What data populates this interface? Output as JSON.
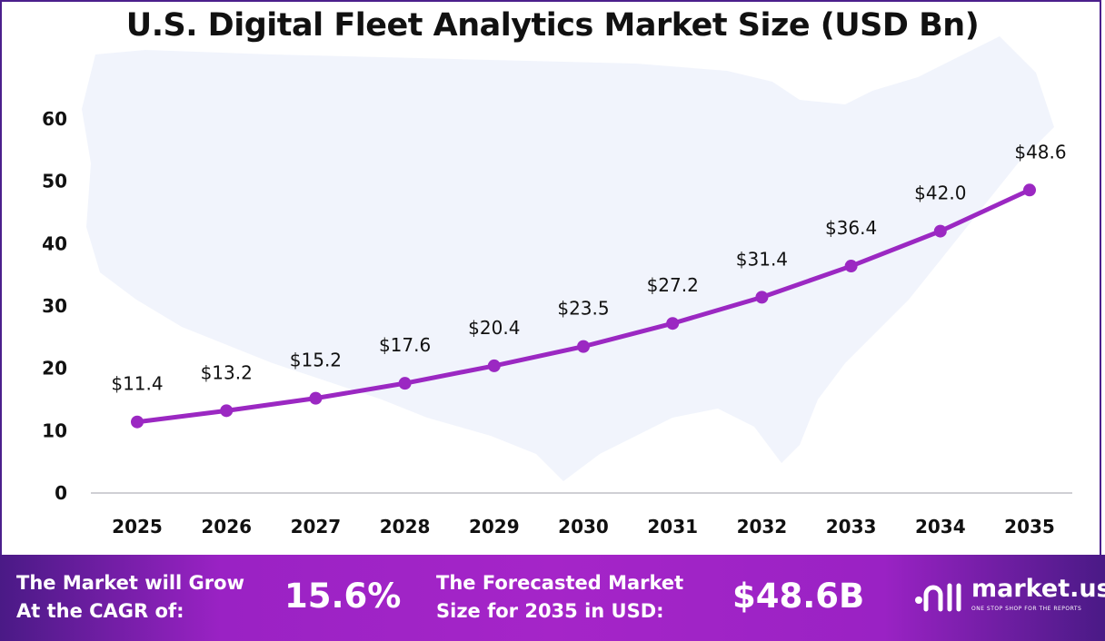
{
  "chart_data": {
    "type": "line",
    "title": "U.S. Digital Fleet Analytics Market Size (USD Bn)",
    "categories": [
      "2025",
      "2026",
      "2027",
      "2028",
      "2029",
      "2030",
      "2031",
      "2032",
      "2033",
      "2034",
      "2035"
    ],
    "values": [
      11.4,
      13.2,
      15.2,
      17.6,
      20.4,
      23.5,
      27.2,
      31.4,
      36.4,
      42.0,
      48.6
    ],
    "data_labels": [
      "$11.4",
      "$13.2",
      "$15.2",
      "$17.6",
      "$20.4",
      "$23.5",
      "$27.2",
      "$31.4",
      "$36.4",
      "$42.0",
      "$48.6"
    ],
    "ylim": [
      0,
      60
    ],
    "yticks": [
      "0",
      "10",
      "20",
      "30",
      "40",
      "50",
      "60"
    ],
    "grid": false,
    "line_color": "#9b28c2",
    "background": "U.S. map silhouette"
  },
  "footer": {
    "cagr_label_line1": "The Market will Grow",
    "cagr_label_line2": "At the CAGR of:",
    "cagr_value": "15.6%",
    "forecast_label_line1": "The Forecasted Market",
    "forecast_label_line2": "Size for 2035 in USD:",
    "forecast_value": "$48.6B",
    "logo_name": "market.us",
    "logo_tagline": "ONE STOP SHOP FOR THE REPORTS"
  }
}
